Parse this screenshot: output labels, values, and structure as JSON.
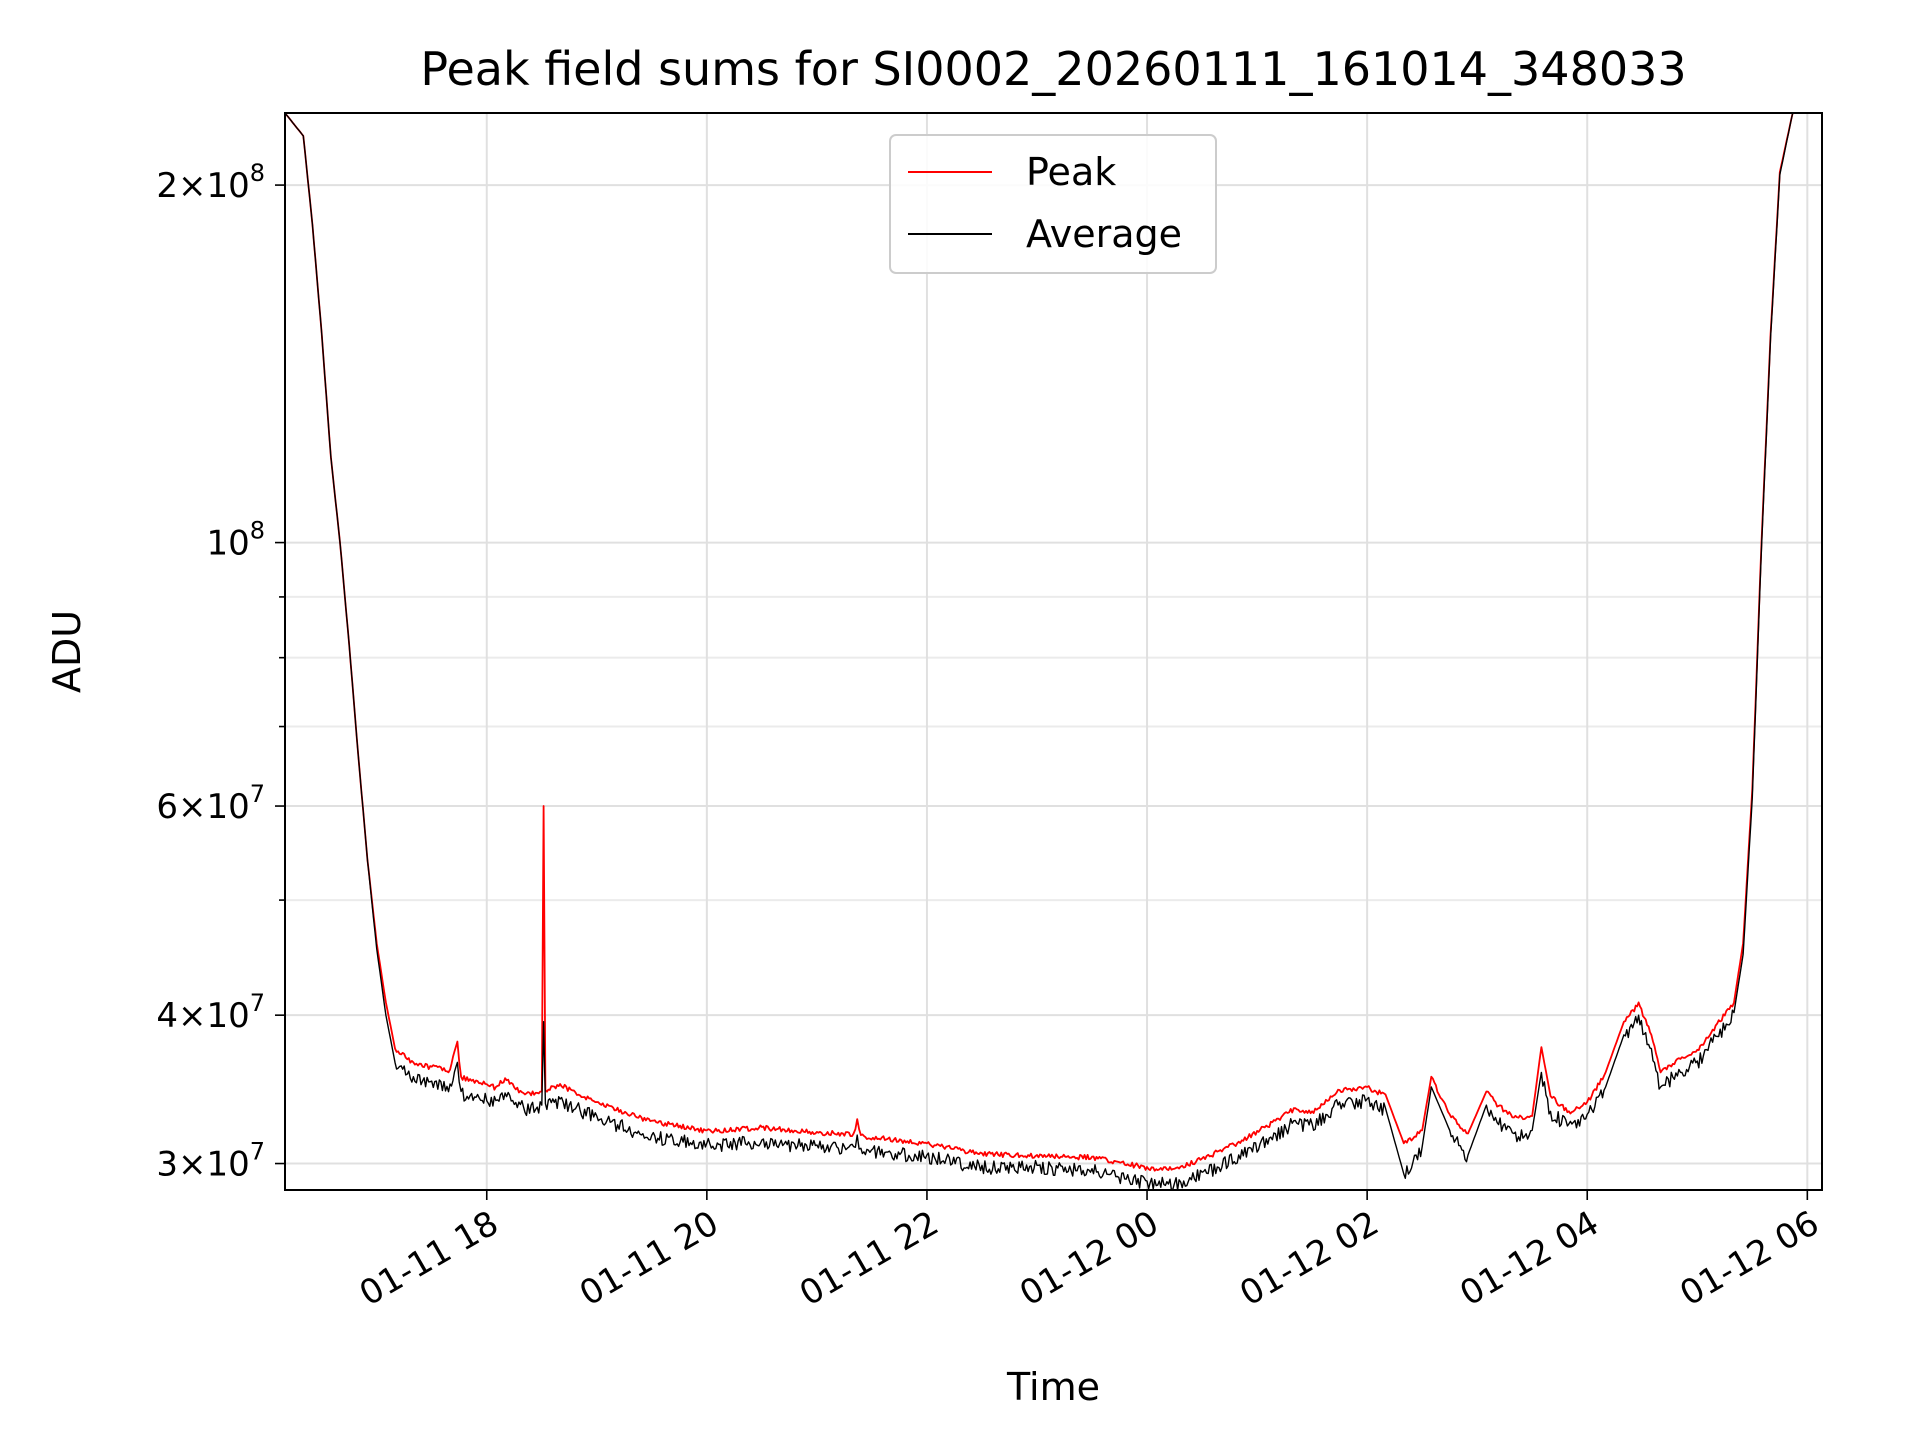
{
  "chart_data": {
    "type": "line",
    "title": "Peak field sums for SI0002_20260111_161014_348033",
    "xlabel": "Time",
    "ylabel": "ADU",
    "yscale": "log",
    "ylim": [
      28500000,
      230000000
    ],
    "xlim": [
      "2026-01-11 16:10",
      "2026-01-12 06:08"
    ],
    "grid": true,
    "legend_position": "top-center",
    "x_ticks": [
      {
        "value": "2026-01-11 18:00",
        "label": "01-11 18"
      },
      {
        "value": "2026-01-11 20:00",
        "label": "01-11 20"
      },
      {
        "value": "2026-01-11 22:00",
        "label": "01-11 22"
      },
      {
        "value": "2026-01-12 00:00",
        "label": "01-12 00"
      },
      {
        "value": "2026-01-12 02:00",
        "label": "01-12 02"
      },
      {
        "value": "2026-01-12 04:00",
        "label": "01-12 04"
      },
      {
        "value": "2026-01-12 06:00",
        "label": "01-12 06"
      }
    ],
    "y_ticks": [
      {
        "value": 30000000,
        "mantissa": "3",
        "exponent": "7"
      },
      {
        "value": 40000000,
        "mantissa": "4",
        "exponent": "7"
      },
      {
        "value": 60000000,
        "mantissa": "6",
        "exponent": "7"
      },
      {
        "value": 100000000,
        "mantissa": "",
        "exponent": "8"
      },
      {
        "value": 200000000,
        "mantissa": "2",
        "exponent": "8"
      }
    ],
    "series": [
      {
        "name": "Peak",
        "color": "#ff0000",
        "points": [
          [
            "2026-01-11 16:10",
            230000000
          ],
          [
            "2026-01-11 16:20",
            220000000
          ],
          [
            "2026-01-11 16:25",
            185000000
          ],
          [
            "2026-01-11 16:30",
            150000000
          ],
          [
            "2026-01-11 16:35",
            118000000
          ],
          [
            "2026-01-11 16:40",
            100000000
          ],
          [
            "2026-01-11 16:45",
            82000000
          ],
          [
            "2026-01-11 16:50",
            66000000
          ],
          [
            "2026-01-11 16:55",
            54000000
          ],
          [
            "2026-01-11 17:00",
            46000000
          ],
          [
            "2026-01-11 17:05",
            41000000
          ],
          [
            "2026-01-11 17:10",
            37500000
          ],
          [
            "2026-01-11 17:20",
            36500000
          ],
          [
            "2026-01-11 17:30",
            36200000
          ],
          [
            "2026-01-11 17:40",
            36000000
          ],
          [
            "2026-01-11 17:44",
            38000000
          ],
          [
            "2026-01-11 17:46",
            35500000
          ],
          [
            "2026-01-11 17:55",
            35200000
          ],
          [
            "2026-01-11 18:05",
            34800000
          ],
          [
            "2026-01-11 18:10",
            35400000
          ],
          [
            "2026-01-11 18:20",
            34400000
          ],
          [
            "2026-01-11 18:30",
            34500000
          ],
          [
            "2026-01-11 18:31",
            60000000
          ],
          [
            "2026-01-11 18:32",
            34600000
          ],
          [
            "2026-01-11 18:40",
            35000000
          ],
          [
            "2026-01-11 19:00",
            33800000
          ],
          [
            "2026-01-11 19:30",
            32600000
          ],
          [
            "2026-01-11 20:00",
            32000000
          ],
          [
            "2026-01-11 20:30",
            32200000
          ],
          [
            "2026-01-11 21:00",
            31900000
          ],
          [
            "2026-01-11 21:20",
            31800000
          ],
          [
            "2026-01-11 21:22",
            32700000
          ],
          [
            "2026-01-11 21:24",
            31700000
          ],
          [
            "2026-01-11 22:00",
            31200000
          ],
          [
            "2026-01-11 22:30",
            30600000
          ],
          [
            "2026-01-11 23:00",
            30500000
          ],
          [
            "2026-01-11 23:30",
            30400000
          ],
          [
            "2026-01-12 00:00",
            29800000
          ],
          [
            "2026-01-12 00:15",
            29700000
          ],
          [
            "2026-01-12 00:30",
            30300000
          ],
          [
            "2026-01-12 00:50",
            31300000
          ],
          [
            "2026-01-12 01:10",
            32600000
          ],
          [
            "2026-01-12 01:20",
            33400000
          ],
          [
            "2026-01-12 01:30",
            33200000
          ],
          [
            "2026-01-12 01:45",
            34600000
          ],
          [
            "2026-01-12 02:00",
            34800000
          ],
          [
            "2026-01-12 02:10",
            34300000
          ],
          [
            "2026-01-12 02:20",
            31200000
          ],
          [
            "2026-01-12 02:30",
            32000000
          ],
          [
            "2026-01-12 02:35",
            35500000
          ],
          [
            "2026-01-12 02:45",
            33000000
          ],
          [
            "2026-01-12 02:55",
            31800000
          ],
          [
            "2026-01-12 03:05",
            34500000
          ],
          [
            "2026-01-12 03:10",
            33800000
          ],
          [
            "2026-01-12 03:20",
            32800000
          ],
          [
            "2026-01-12 03:30",
            32900000
          ],
          [
            "2026-01-12 03:35",
            37600000
          ],
          [
            "2026-01-12 03:40",
            34200000
          ],
          [
            "2026-01-12 03:50",
            33200000
          ],
          [
            "2026-01-12 04:00",
            33800000
          ],
          [
            "2026-01-12 04:10",
            35800000
          ],
          [
            "2026-01-12 04:20",
            39500000
          ],
          [
            "2026-01-12 04:28",
            41000000
          ],
          [
            "2026-01-12 04:35",
            38500000
          ],
          [
            "2026-01-12 04:40",
            35800000
          ],
          [
            "2026-01-12 04:50",
            36800000
          ],
          [
            "2026-01-12 05:00",
            37400000
          ],
          [
            "2026-01-12 05:10",
            39200000
          ],
          [
            "2026-01-12 05:20",
            41000000
          ],
          [
            "2026-01-12 05:25",
            46000000
          ],
          [
            "2026-01-12 05:30",
            62000000
          ],
          [
            "2026-01-12 05:35",
            100000000
          ],
          [
            "2026-01-12 05:40",
            150000000
          ],
          [
            "2026-01-12 05:45",
            205000000
          ],
          [
            "2026-01-12 05:52",
            230000000
          ],
          [
            "2026-01-12 06:08",
            230000000
          ]
        ]
      },
      {
        "name": "Average",
        "color": "#000000",
        "points": [
          [
            "2026-01-11 16:10",
            230000000
          ],
          [
            "2026-01-11 16:20",
            220000000
          ],
          [
            "2026-01-11 16:25",
            185000000
          ],
          [
            "2026-01-11 16:30",
            150000000
          ],
          [
            "2026-01-11 16:35",
            118000000
          ],
          [
            "2026-01-11 16:40",
            100000000
          ],
          [
            "2026-01-11 16:45",
            82000000
          ],
          [
            "2026-01-11 16:50",
            66000000
          ],
          [
            "2026-01-11 16:55",
            54000000
          ],
          [
            "2026-01-11 17:00",
            45500000
          ],
          [
            "2026-01-11 17:05",
            40000000
          ],
          [
            "2026-01-11 17:10",
            36500000
          ],
          [
            "2026-01-11 17:20",
            35500000
          ],
          [
            "2026-01-11 17:30",
            35200000
          ],
          [
            "2026-01-11 17:40",
            35000000
          ],
          [
            "2026-01-11 17:44",
            36500000
          ],
          [
            "2026-01-11 17:46",
            34500000
          ],
          [
            "2026-01-11 17:55",
            34300000
          ],
          [
            "2026-01-11 18:05",
            33900000
          ],
          [
            "2026-01-11 18:10",
            34400000
          ],
          [
            "2026-01-11 18:20",
            33500000
          ],
          [
            "2026-01-11 18:30",
            33600000
          ],
          [
            "2026-01-11 18:31",
            39500000
          ],
          [
            "2026-01-11 18:32",
            33700000
          ],
          [
            "2026-01-11 18:40",
            34000000
          ],
          [
            "2026-01-11 19:00",
            32900000
          ],
          [
            "2026-01-11 19:30",
            31700000
          ],
          [
            "2026-01-11 20:00",
            31200000
          ],
          [
            "2026-01-11 20:30",
            31400000
          ],
          [
            "2026-01-11 21:00",
            31100000
          ],
          [
            "2026-01-11 21:20",
            31000000
          ],
          [
            "2026-01-11 21:22",
            31700000
          ],
          [
            "2026-01-11 21:24",
            30900000
          ],
          [
            "2026-01-11 22:00",
            30500000
          ],
          [
            "2026-01-11 22:30",
            29900000
          ],
          [
            "2026-01-11 23:00",
            29900000
          ],
          [
            "2026-01-11 23:30",
            29700000
          ],
          [
            "2026-01-12 00:00",
            29000000
          ],
          [
            "2026-01-12 00:15",
            28900000
          ],
          [
            "2026-01-12 00:30",
            29500000
          ],
          [
            "2026-01-12 00:50",
            30500000
          ],
          [
            "2026-01-12 01:10",
            31800000
          ],
          [
            "2026-01-12 01:20",
            32600000
          ],
          [
            "2026-01-12 01:30",
            32400000
          ],
          [
            "2026-01-12 01:45",
            33800000
          ],
          [
            "2026-01-12 02:00",
            34000000
          ],
          [
            "2026-01-12 02:10",
            33400000
          ],
          [
            "2026-01-12 02:20",
            29400000
          ],
          [
            "2026-01-12 02:30",
            31000000
          ],
          [
            "2026-01-12 02:35",
            34800000
          ],
          [
            "2026-01-12 02:45",
            32000000
          ],
          [
            "2026-01-12 02:55",
            30500000
          ],
          [
            "2026-01-12 03:05",
            33600000
          ],
          [
            "2026-01-12 03:10",
            32800000
          ],
          [
            "2026-01-12 03:20",
            31800000
          ],
          [
            "2026-01-12 03:30",
            32000000
          ],
          [
            "2026-01-12 03:35",
            35800000
          ],
          [
            "2026-01-12 03:40",
            33200000
          ],
          [
            "2026-01-12 03:50",
            32400000
          ],
          [
            "2026-01-12 04:00",
            33000000
          ],
          [
            "2026-01-12 04:10",
            34800000
          ],
          [
            "2026-01-12 04:20",
            38500000
          ],
          [
            "2026-01-12 04:28",
            40000000
          ],
          [
            "2026-01-12 04:35",
            37500000
          ],
          [
            "2026-01-12 04:40",
            34800000
          ],
          [
            "2026-01-12 04:50",
            36000000
          ],
          [
            "2026-01-12 05:00",
            36600000
          ],
          [
            "2026-01-12 05:10",
            38400000
          ],
          [
            "2026-01-12 05:20",
            40200000
          ],
          [
            "2026-01-12 05:25",
            45000000
          ],
          [
            "2026-01-12 05:30",
            61000000
          ],
          [
            "2026-01-12 05:35",
            99000000
          ],
          [
            "2026-01-12 05:40",
            149000000
          ],
          [
            "2026-01-12 05:45",
            204000000
          ],
          [
            "2026-01-12 05:52",
            230000000
          ],
          [
            "2026-01-12 06:08",
            230000000
          ]
        ]
      }
    ]
  }
}
